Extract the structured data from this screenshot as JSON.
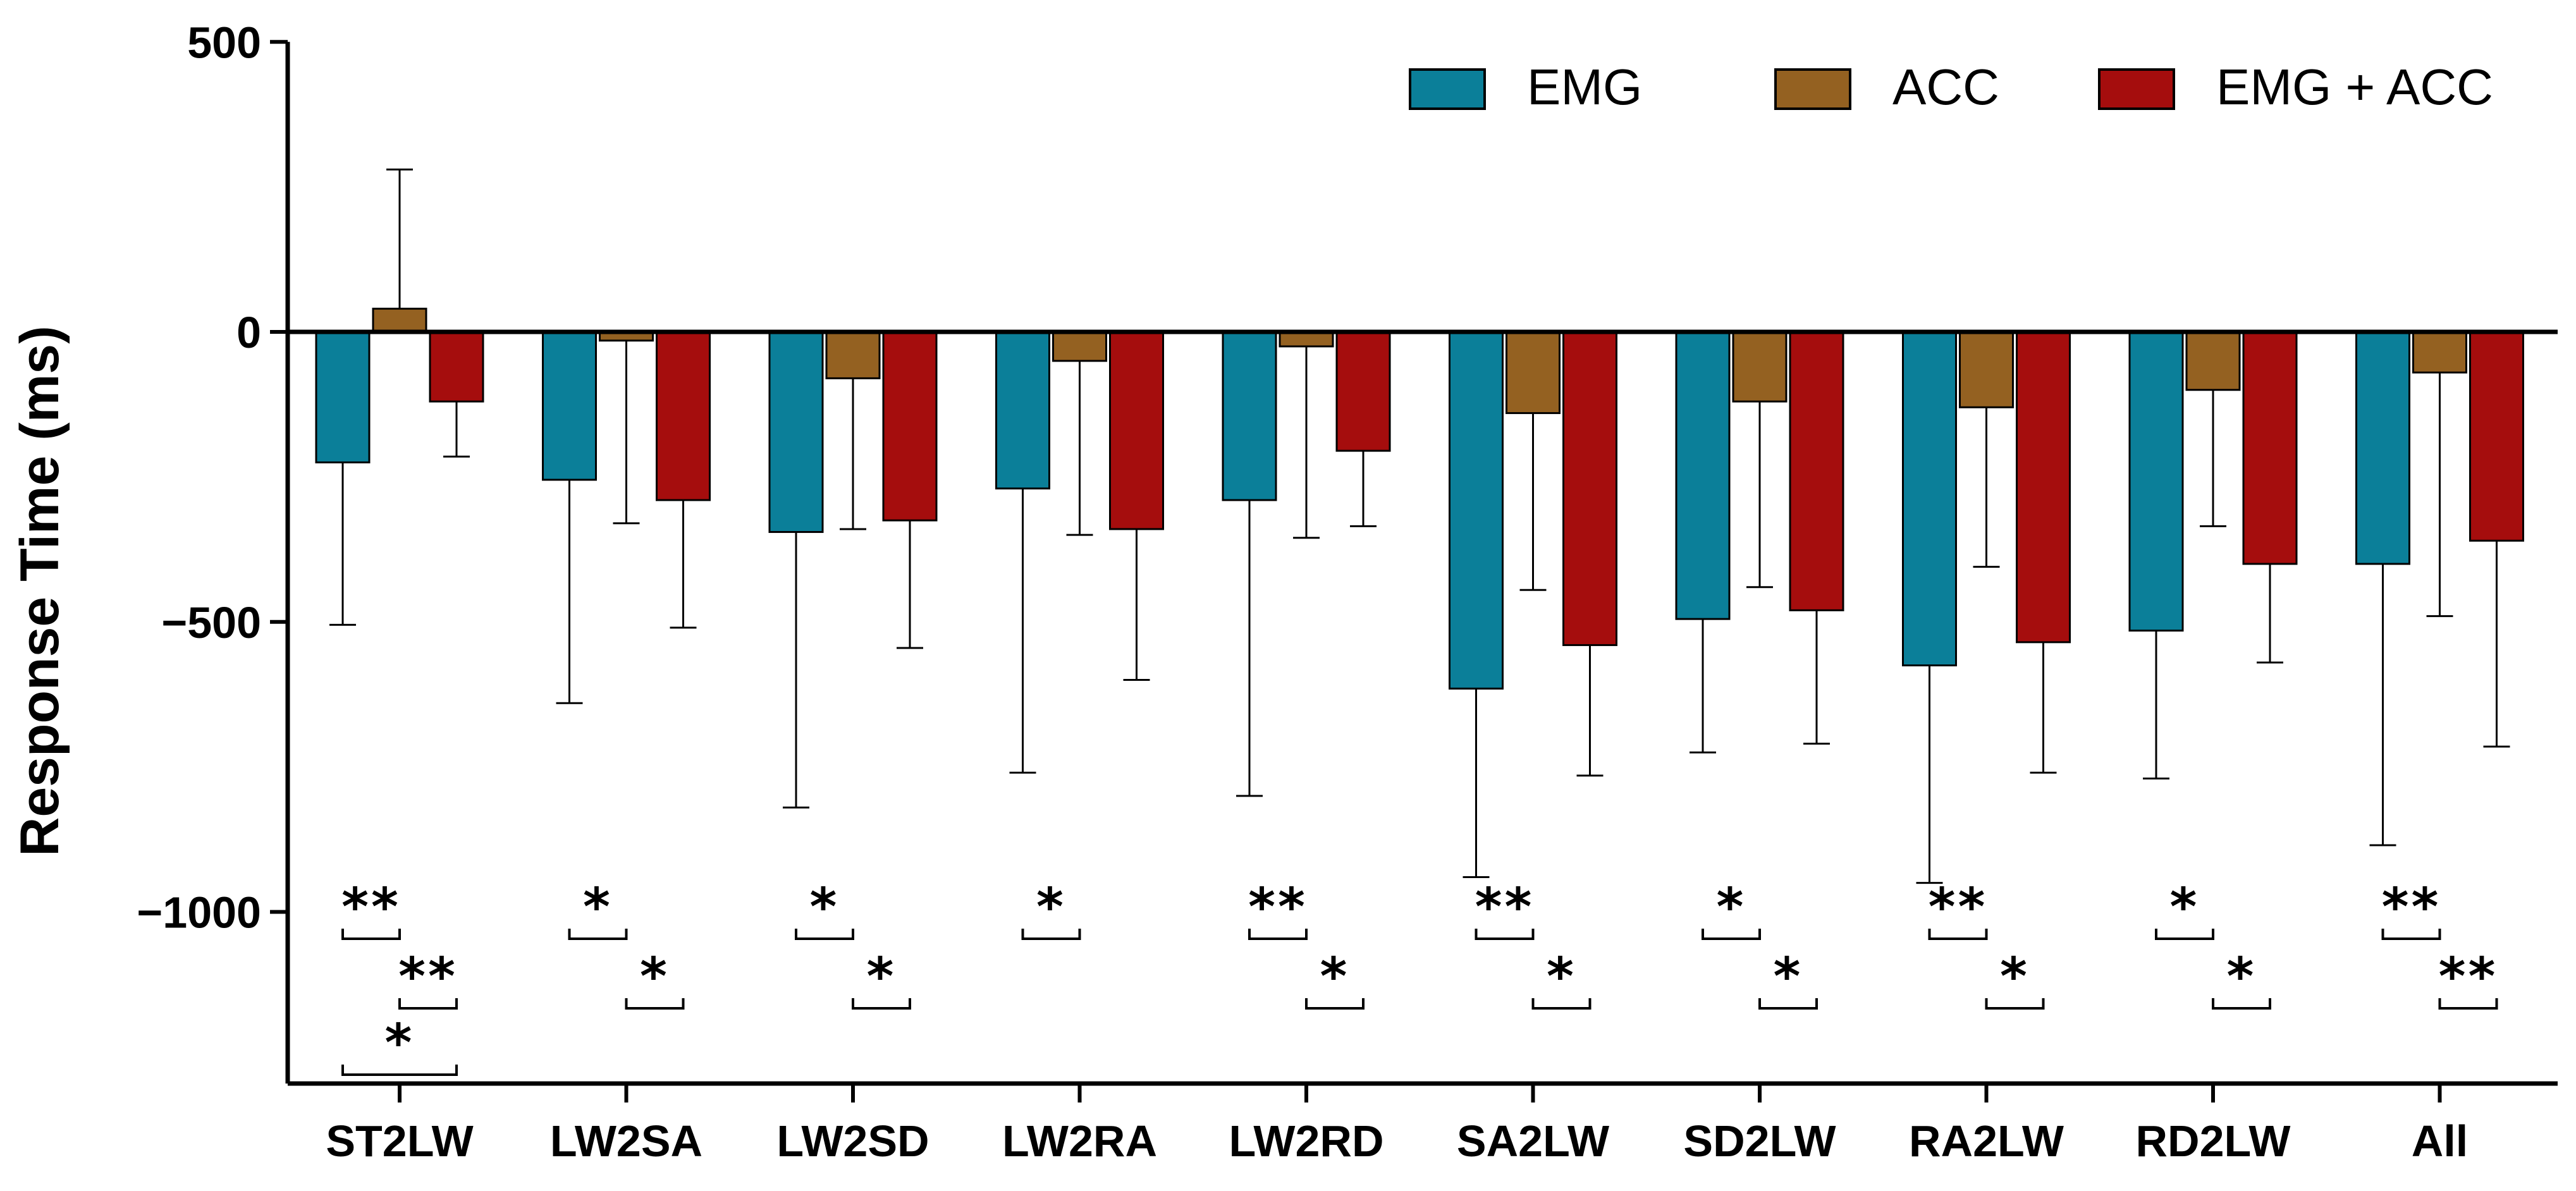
{
  "chart_data": {
    "type": "bar",
    "title": "",
    "xlabel": "",
    "ylabel": "Response Time (ms)",
    "ylim": [
      -1300,
      500
    ],
    "yticks": [
      500,
      0,
      -500,
      -1000
    ],
    "ytick_labels": [
      "500",
      "0",
      "−500",
      "−1000"
    ],
    "categories": [
      "ST2LW",
      "LW2SA",
      "LW2SD",
      "LW2RA",
      "LW2RD",
      "SA2LW",
      "SD2LW",
      "RA2LW",
      "RD2LW",
      "All"
    ],
    "series": [
      {
        "name": "EMG",
        "color": "#0b7f99",
        "values": [
          -225,
          -255,
          -345,
          -270,
          -290,
          -615,
          -495,
          -575,
          -515,
          -400
        ],
        "errors": [
          280,
          385,
          475,
          490,
          510,
          325,
          230,
          375,
          255,
          485
        ]
      },
      {
        "name": "ACC",
        "color": "#946121",
        "values": [
          40,
          -15,
          -80,
          -50,
          -25,
          -140,
          -120,
          -130,
          -100,
          -70
        ],
        "errors": [
          240,
          315,
          260,
          300,
          330,
          305,
          320,
          275,
          235,
          420
        ]
      },
      {
        "name": "EMG + ACC",
        "color": "#a50d0d",
        "values": [
          -120,
          -290,
          -325,
          -340,
          -205,
          -540,
          -480,
          -535,
          -400,
          -360
        ],
        "errors": [
          95,
          220,
          220,
          260,
          130,
          225,
          230,
          225,
          170,
          355
        ]
      }
    ],
    "legend_position": "top-right",
    "significance": [
      {
        "category": 0,
        "pair": [
          0,
          1
        ],
        "label": "**",
        "level": 0
      },
      {
        "category": 0,
        "pair": [
          1,
          2
        ],
        "label": "**",
        "level": 1
      },
      {
        "category": 0,
        "pair": [
          0,
          2
        ],
        "label": "*",
        "level": 2
      },
      {
        "category": 1,
        "pair": [
          0,
          1
        ],
        "label": "*",
        "level": 0
      },
      {
        "category": 1,
        "pair": [
          1,
          2
        ],
        "label": "*",
        "level": 1
      },
      {
        "category": 2,
        "pair": [
          0,
          1
        ],
        "label": "*",
        "level": 0
      },
      {
        "category": 2,
        "pair": [
          1,
          2
        ],
        "label": "*",
        "level": 1
      },
      {
        "category": 3,
        "pair": [
          0,
          1
        ],
        "label": "*",
        "level": 0
      },
      {
        "category": 4,
        "pair": [
          0,
          1
        ],
        "label": "**",
        "level": 0
      },
      {
        "category": 4,
        "pair": [
          1,
          2
        ],
        "label": "*",
        "level": 1
      },
      {
        "category": 5,
        "pair": [
          0,
          1
        ],
        "label": "**",
        "level": 0
      },
      {
        "category": 5,
        "pair": [
          1,
          2
        ],
        "label": "*",
        "level": 1
      },
      {
        "category": 6,
        "pair": [
          0,
          1
        ],
        "label": "*",
        "level": 0
      },
      {
        "category": 6,
        "pair": [
          1,
          2
        ],
        "label": "*",
        "level": 1
      },
      {
        "category": 7,
        "pair": [
          0,
          1
        ],
        "label": "**",
        "level": 0
      },
      {
        "category": 7,
        "pair": [
          1,
          2
        ],
        "label": "*",
        "level": 1
      },
      {
        "category": 8,
        "pair": [
          0,
          1
        ],
        "label": "*",
        "level": 0
      },
      {
        "category": 8,
        "pair": [
          1,
          2
        ],
        "label": "*",
        "level": 1
      },
      {
        "category": 9,
        "pair": [
          0,
          1
        ],
        "label": "**",
        "level": 0
      },
      {
        "category": 9,
        "pair": [
          1,
          2
        ],
        "label": "**",
        "level": 1
      }
    ]
  }
}
